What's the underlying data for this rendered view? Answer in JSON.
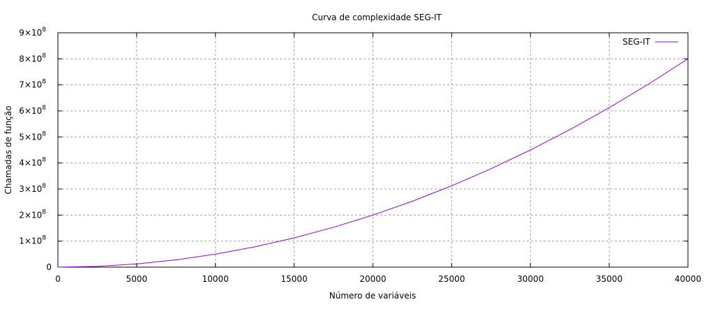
{
  "chart_data": {
    "type": "line",
    "title": "Curva de complexidade SEG-IT",
    "xlabel": "Número de variáveis",
    "ylabel": "Chamadas de função",
    "xlim": [
      0,
      40000
    ],
    "ylim": [
      0,
      900000000
    ],
    "x_ticks": [
      {
        "value": 0,
        "label": "0"
      },
      {
        "value": 5000,
        "label": "5000"
      },
      {
        "value": 10000,
        "label": "10000"
      },
      {
        "value": 15000,
        "label": "15000"
      },
      {
        "value": 20000,
        "label": "20000"
      },
      {
        "value": 25000,
        "label": "25000"
      },
      {
        "value": 30000,
        "label": "30000"
      },
      {
        "value": 35000,
        "label": "35000"
      },
      {
        "value": 40000,
        "label": "40000"
      }
    ],
    "y_ticks": [
      {
        "value": 0,
        "mantissa": "0",
        "exponent": ""
      },
      {
        "value": 100000000,
        "mantissa": "1×10",
        "exponent": "8"
      },
      {
        "value": 200000000,
        "mantissa": "2×10",
        "exponent": "8"
      },
      {
        "value": 300000000,
        "mantissa": "3×10",
        "exponent": "8"
      },
      {
        "value": 400000000,
        "mantissa": "4×10",
        "exponent": "8"
      },
      {
        "value": 500000000,
        "mantissa": "5×10",
        "exponent": "8"
      },
      {
        "value": 600000000,
        "mantissa": "6×10",
        "exponent": "8"
      },
      {
        "value": 700000000,
        "mantissa": "7×10",
        "exponent": "8"
      },
      {
        "value": 800000000,
        "mantissa": "8×10",
        "exponent": "8"
      },
      {
        "value": 900000000,
        "mantissa": "9×10",
        "exponent": "8"
      }
    ],
    "grid": true,
    "legend_position": "top-right",
    "series": [
      {
        "name": "SEG-IT",
        "color": "#9400d3",
        "x": [
          0,
          2500,
          5000,
          7500,
          10000,
          12500,
          15000,
          17500,
          20000,
          22500,
          25000,
          27500,
          30000,
          32500,
          35000,
          37500,
          40000
        ],
        "y": [
          0,
          3125000,
          12500000,
          28125000,
          50000000,
          78125000,
          112500000,
          153125000,
          200000000,
          253125000,
          312500000,
          378125000,
          450000000,
          528125000,
          612500000,
          703125000,
          800000000
        ]
      }
    ]
  }
}
